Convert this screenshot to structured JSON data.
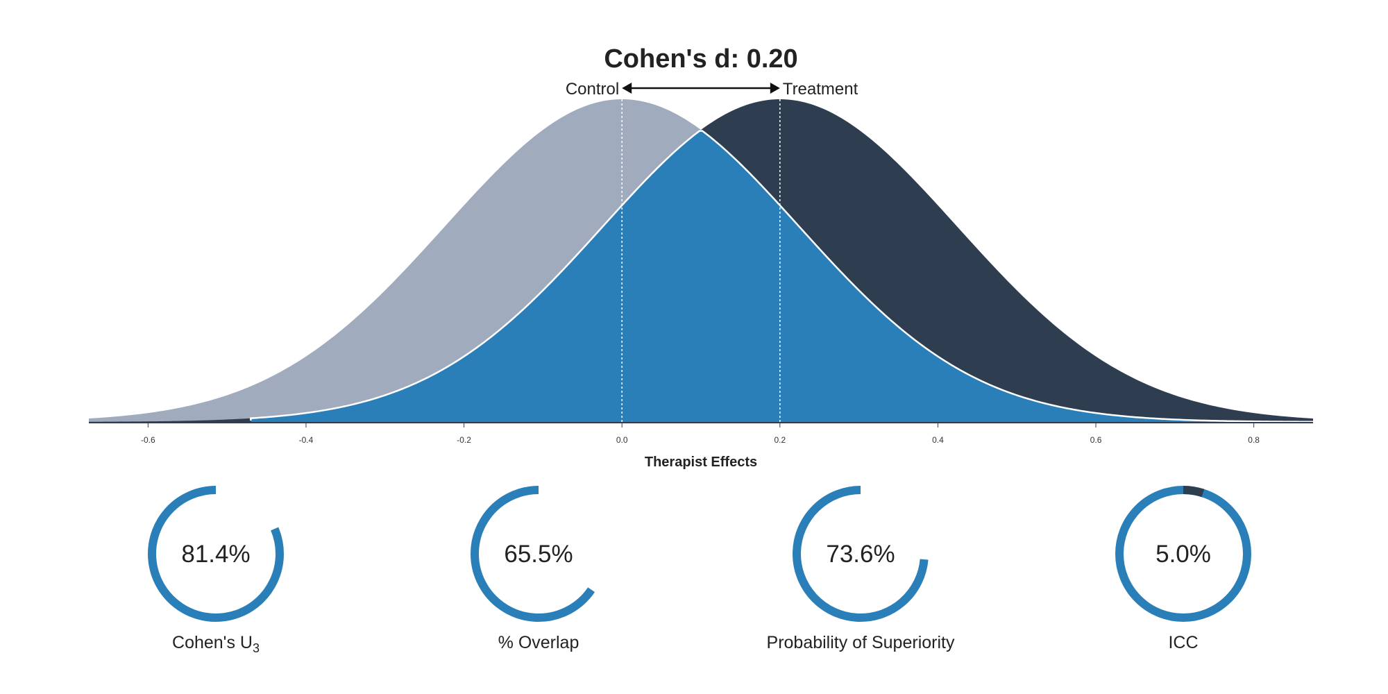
{
  "chart_data": {
    "type": "area",
    "title": "Cohen's d: 0.20",
    "xlabel": "Therapist Effects",
    "ylabel": "",
    "xlim": [
      -0.675,
      0.875
    ],
    "xticks": [
      -0.6,
      -0.4,
      -0.2,
      0.0,
      0.2,
      0.4,
      0.6,
      0.8
    ],
    "tick_labels": [
      "-0.6",
      "-0.4",
      "-0.2",
      "0.0",
      "0.2",
      "0.4",
      "0.6",
      "0.8"
    ],
    "cohens_d": 0.2,
    "series": [
      {
        "name": "Control",
        "mean": 0.0,
        "sd": 0.224,
        "color": "#a0abbe"
      },
      {
        "name": "Treatment",
        "mean": 0.2,
        "sd": 0.224,
        "color": "#2e3d50"
      }
    ],
    "overlap_color": "#2b7fb8",
    "overlap_outline_color": "#ffffff",
    "overlap_start_x": -0.47,
    "group_labels": {
      "control": "Control",
      "treatment": "Treatment"
    }
  },
  "metrics": [
    {
      "key": "u3",
      "label_main": "Cohen's U",
      "label_sub": "3",
      "value": 81.4,
      "value_text": "81.4%",
      "arc_fraction": 0.814,
      "track": false
    },
    {
      "key": "overlap",
      "label_main": "% Overlap",
      "label_sub": "",
      "value": 65.5,
      "value_text": "65.5%",
      "arc_fraction": 0.655,
      "track": false
    },
    {
      "key": "prob_sup",
      "label_main": "Probability of Superiority",
      "label_sub": "",
      "value": 73.6,
      "value_text": "73.6%",
      "arc_fraction": 0.736,
      "track": false
    },
    {
      "key": "icc",
      "label_main": "ICC",
      "label_sub": "",
      "value": 5.0,
      "value_text": "5.0%",
      "arc_fraction": 0.05,
      "track": true
    }
  ],
  "colors": {
    "arc": "#2b7fb8",
    "arc_highlight": "#2e3d50",
    "axis": "#2e3d50",
    "text": "#222222",
    "mean_line": "#ffffff"
  }
}
